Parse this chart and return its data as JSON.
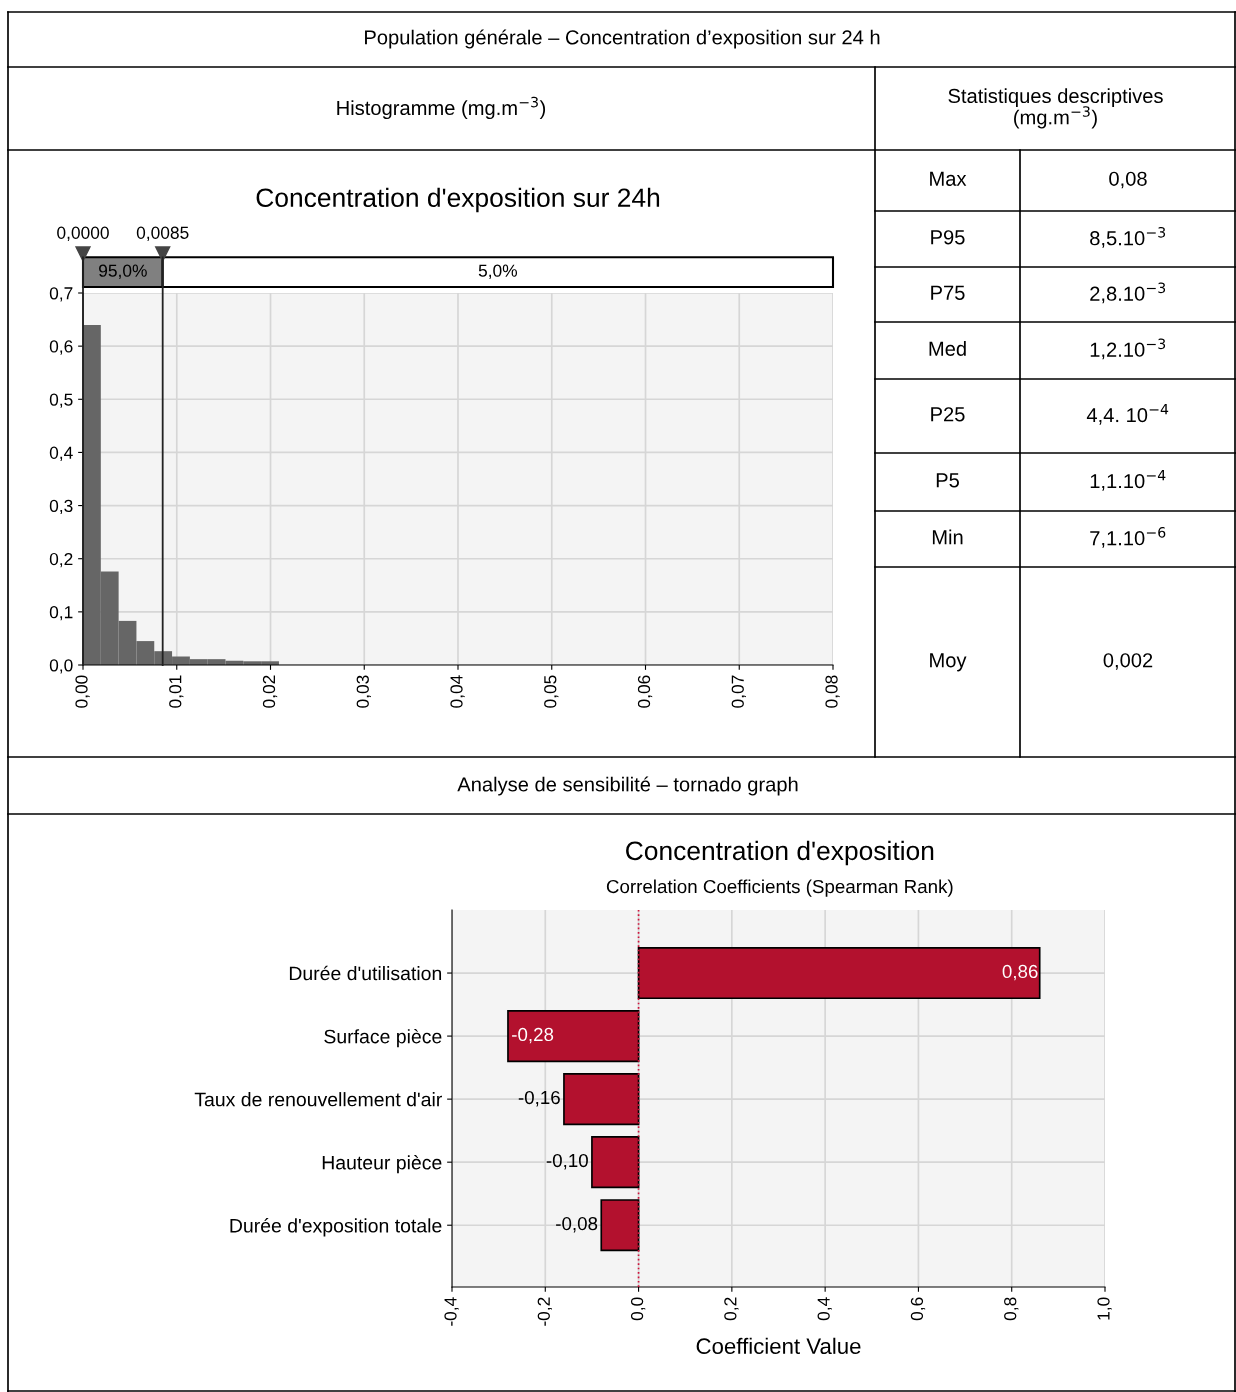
{
  "chart_data": [
    {
      "type": "histogram",
      "title": "Concentration d'exposition sur 24h",
      "annotations": [
        "Population générale – Concentration d’exposition sur 24 h",
        "Histogramme (mg.m$^{−3}$)",
        "95,0%",
        "5,0%"
      ],
      "bins": [
        0,
        0.0019,
        0.0038,
        0.0057,
        0.0076,
        0.0095,
        0.0114,
        0.0133,
        0.0152,
        0.0171,
        0.019,
        0.0209
      ],
      "values": [
        0.64,
        0.176,
        0.083,
        0.045,
        0.026,
        0.016,
        0.011,
        0.011,
        0.008,
        0.007,
        0.007
      ],
      "color": "#666666",
      "xlim": [
        0,
        0.08
      ],
      "xticks": [
        {
          "value": 0,
          "label": "0,00"
        },
        {
          "value": 0.01,
          "label": "0,01"
        },
        {
          "value": 0.02,
          "label": "0,02"
        },
        {
          "value": 0.03,
          "label": "0,03"
        },
        {
          "value": 0.04,
          "label": "0,04"
        },
        {
          "value": 0.05,
          "label": "0,05"
        },
        {
          "value": 0.06,
          "label": "0,06"
        },
        {
          "value": 0.07,
          "label": "0,07"
        },
        {
          "value": 0.08,
          "label": "0,08"
        }
      ],
      "ylim": [
        0,
        0.7
      ],
      "yticks": [
        {
          "value": 0,
          "label": "0,0"
        },
        {
          "value": 0.1,
          "label": "0,1"
        },
        {
          "value": 0.2,
          "label": "0,2"
        },
        {
          "value": 0.3,
          "label": "0,3"
        },
        {
          "value": 0.4,
          "label": "0,4"
        },
        {
          "value": 0.5,
          "label": "0,5"
        },
        {
          "value": 0.6,
          "label": "0,6"
        },
        {
          "value": 0.7,
          "label": "0,7"
        }
      ],
      "grid": true,
      "ref_lines": [
        {
          "axis": "x",
          "value": 0,
          "label": "0,0000",
          "color": "#222222"
        },
        {
          "axis": "x",
          "value": 0.0085,
          "label": "0,0085",
          "color": "#222222"
        }
      ]
    },
    {
      "type": "other",
      "title": "Statistiques descriptives\n(mg.m$^{−3}$)",
      "annotations": [
        "Max",
        "0,08",
        "P95",
        "8,5.10$^{−3}$",
        "P75",
        "2,8.10$^{−3}$",
        "Med",
        "1,2.10$^{−3}$",
        "P25",
        "4,4. 10$^{−4}$",
        "P5",
        "1,1.10$^{−4}$",
        "Min",
        "7,1.10$^{−6}$",
        "Moy",
        "0,002"
      ]
    },
    {
      "type": "bar",
      "orientation": "horizontal",
      "title": "Concentration d'exposition",
      "subtitle": "Correlation Coefficients (Spearman Rank)",
      "xlabel": "Coefficient Value",
      "annotations": [
        "Analyse de sensibilité – tornado graph"
      ],
      "categories": [
        "Durée d'utilisation",
        "Surface pièce",
        "Taux de renouvellement d'air",
        "Hauteur pièce",
        "Durée d'exposition totale"
      ],
      "values": [
        0.86,
        -0.28,
        -0.16,
        -0.1,
        -0.08
      ],
      "value_labels": [
        "0,86",
        "-0,28",
        "-0,16",
        "-0,10",
        "-0,08"
      ],
      "color": "#b3112e",
      "xlim": [
        -0.4,
        1.0
      ],
      "xticks": [
        {
          "value": -0.4,
          "label": "-0,4"
        },
        {
          "value": -0.2,
          "label": "-0,2"
        },
        {
          "value": 0,
          "label": "0,0"
        },
        {
          "value": 0.2,
          "label": "0,2"
        },
        {
          "value": 0.4,
          "label": "0,4"
        },
        {
          "value": 0.6,
          "label": "0,6"
        },
        {
          "value": 0.8,
          "label": "0,8"
        },
        {
          "value": 1.0,
          "label": "1,0"
        }
      ],
      "grid": true,
      "ref_lines": [
        {
          "axis": "x",
          "value": 0,
          "color": "#d0103a",
          "line_style": "dotted"
        }
      ]
    }
  ]
}
